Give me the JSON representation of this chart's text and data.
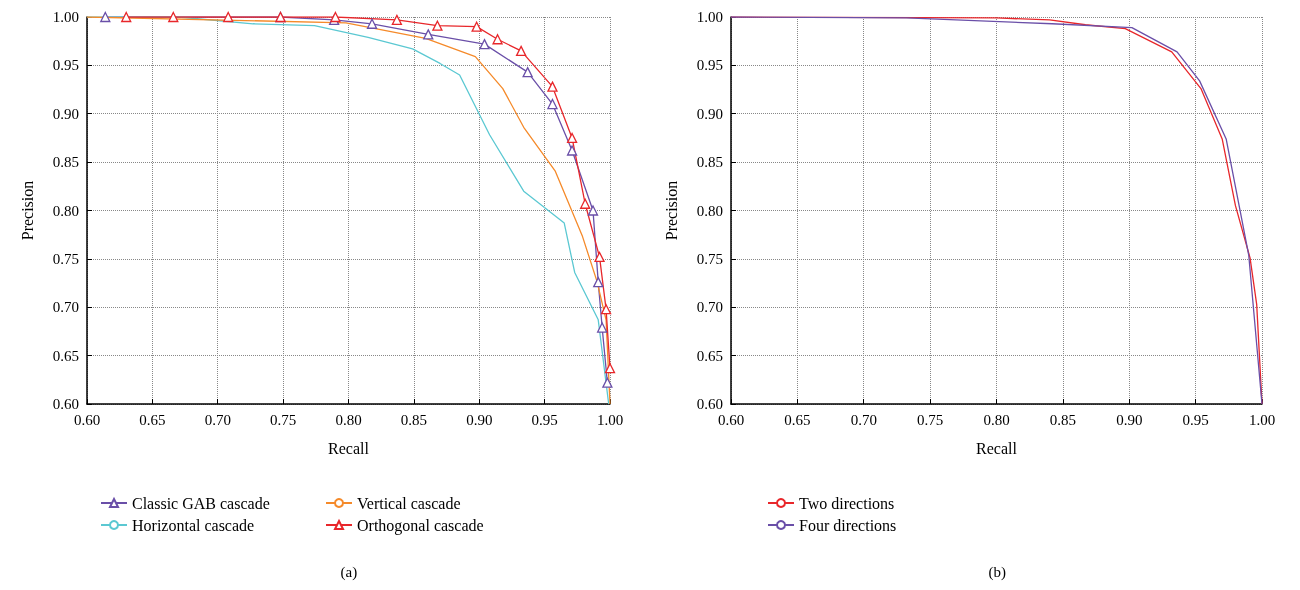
{
  "chart_data": [
    {
      "type": "line",
      "xlabel": "Recall",
      "ylabel": "Precision",
      "annotations": [
        "(a)"
      ],
      "grid": true,
      "legend": "bottom",
      "line_style": "solid",
      "xlim": [
        0.6,
        1.0
      ],
      "ylim": [
        0.6,
        1.0
      ],
      "xticks": [
        {
          "value": 0.6,
          "label": "0.60"
        },
        {
          "value": 0.65,
          "label": "0.65"
        },
        {
          "value": 0.7,
          "label": "0.70"
        },
        {
          "value": 0.75,
          "label": "0.75"
        },
        {
          "value": 0.8,
          "label": "0.80"
        },
        {
          "value": 0.85,
          "label": "0.85"
        },
        {
          "value": 0.9,
          "label": "0.90"
        },
        {
          "value": 0.95,
          "label": "0.95"
        },
        {
          "value": 1.0,
          "label": "1.00"
        }
      ],
      "yticks": [
        {
          "value": 0.6,
          "label": "0.60"
        },
        {
          "value": 0.65,
          "label": "0.65"
        },
        {
          "value": 0.7,
          "label": "0.70"
        },
        {
          "value": 0.75,
          "label": "0.75"
        },
        {
          "value": 0.8,
          "label": "0.80"
        },
        {
          "value": 0.85,
          "label": "0.85"
        },
        {
          "value": 0.9,
          "label": "0.90"
        },
        {
          "value": 0.95,
          "label": "0.95"
        },
        {
          "value": 1.0,
          "label": "1.00"
        }
      ],
      "series": [
        {
          "name": "Classic GAB cascade",
          "color": "#6a4fa8",
          "marker": "triangle",
          "x": [
            0.614,
            0.748,
            0.789,
            0.818,
            0.861,
            0.904,
            0.937,
            0.956,
            0.971,
            0.987,
            0.991,
            0.994,
            0.998
          ],
          "values": [
            1.0,
            1.0,
            0.997,
            0.993,
            0.982,
            0.972,
            0.943,
            0.91,
            0.862,
            0.8,
            0.726,
            0.679,
            0.622
          ]
        },
        {
          "name": "Horizontal cascade",
          "color": "#5bc8d2",
          "marker": "none",
          "x": [
            0.6,
            0.67,
            0.727,
            0.774,
            0.815,
            0.849,
            0.87,
            0.885,
            0.908,
            0.934,
            0.965,
            0.973,
            0.991,
            0.999
          ],
          "values": [
            1.0,
            1.0,
            0.993,
            0.991,
            0.979,
            0.967,
            0.952,
            0.94,
            0.878,
            0.82,
            0.787,
            0.736,
            0.687,
            0.6
          ]
        },
        {
          "name": "Vertical cascade",
          "color": "#f58a2a",
          "marker": "none",
          "x": [
            0.6,
            0.798,
            0.859,
            0.897,
            0.918,
            0.934,
            0.958,
            0.979,
            0.99,
            0.997,
            1.0
          ],
          "values": [
            1.0,
            0.994,
            0.978,
            0.959,
            0.926,
            0.886,
            0.841,
            0.773,
            0.727,
            0.687,
            0.6
          ]
        },
        {
          "name": "Orthogonal cascade",
          "color": "#e8272b",
          "marker": "triangle",
          "x": [
            0.63,
            0.666,
            0.708,
            0.748,
            0.79,
            0.837,
            0.868,
            0.898,
            0.914,
            0.932,
            0.956,
            0.971,
            0.981,
            0.992,
            0.997,
            1.0
          ],
          "values": [
            1.0,
            1.0,
            1.0,
            1.0,
            1.0,
            0.997,
            0.991,
            0.99,
            0.977,
            0.965,
            0.928,
            0.875,
            0.807,
            0.752,
            0.698,
            0.637
          ]
        }
      ]
    },
    {
      "type": "line",
      "xlabel": "Recall",
      "ylabel": "Precision",
      "annotations": [
        "(b)"
      ],
      "grid": true,
      "legend": "bottom",
      "line_style": "solid",
      "marker": "none",
      "xlim": [
        0.6,
        1.0
      ],
      "ylim": [
        0.6,
        1.0
      ],
      "xticks": [
        {
          "value": 0.6,
          "label": "0.60"
        },
        {
          "value": 0.65,
          "label": "0.65"
        },
        {
          "value": 0.7,
          "label": "0.70"
        },
        {
          "value": 0.75,
          "label": "0.75"
        },
        {
          "value": 0.8,
          "label": "0.80"
        },
        {
          "value": 0.85,
          "label": "0.85"
        },
        {
          "value": 0.9,
          "label": "0.90"
        },
        {
          "value": 0.95,
          "label": "0.95"
        },
        {
          "value": 1.0,
          "label": "1.00"
        }
      ],
      "yticks": [
        {
          "value": 0.6,
          "label": "0.60"
        },
        {
          "value": 0.65,
          "label": "0.65"
        },
        {
          "value": 0.7,
          "label": "0.70"
        },
        {
          "value": 0.75,
          "label": "0.75"
        },
        {
          "value": 0.8,
          "label": "0.80"
        },
        {
          "value": 0.85,
          "label": "0.85"
        },
        {
          "value": 0.9,
          "label": "0.90"
        },
        {
          "value": 0.95,
          "label": "0.95"
        },
        {
          "value": 1.0,
          "label": "1.00"
        }
      ],
      "series": [
        {
          "name": "Two directions",
          "color": "#e8272b",
          "x": [
            0.6,
            0.8,
            0.84,
            0.867,
            0.897,
            0.932,
            0.954,
            0.97,
            0.98,
            0.991,
            0.996,
            1.0
          ],
          "values": [
            1.0,
            0.999,
            0.997,
            0.992,
            0.988,
            0.964,
            0.926,
            0.874,
            0.805,
            0.751,
            0.703,
            0.6
          ]
        },
        {
          "name": "Four directions",
          "color": "#6a4fa8",
          "x": [
            0.6,
            0.732,
            0.842,
            0.902,
            0.936,
            0.953,
            0.973,
            0.99,
            1.0
          ],
          "values": [
            1.0,
            0.999,
            0.993,
            0.989,
            0.964,
            0.934,
            0.874,
            0.754,
            0.6
          ]
        }
      ]
    }
  ]
}
